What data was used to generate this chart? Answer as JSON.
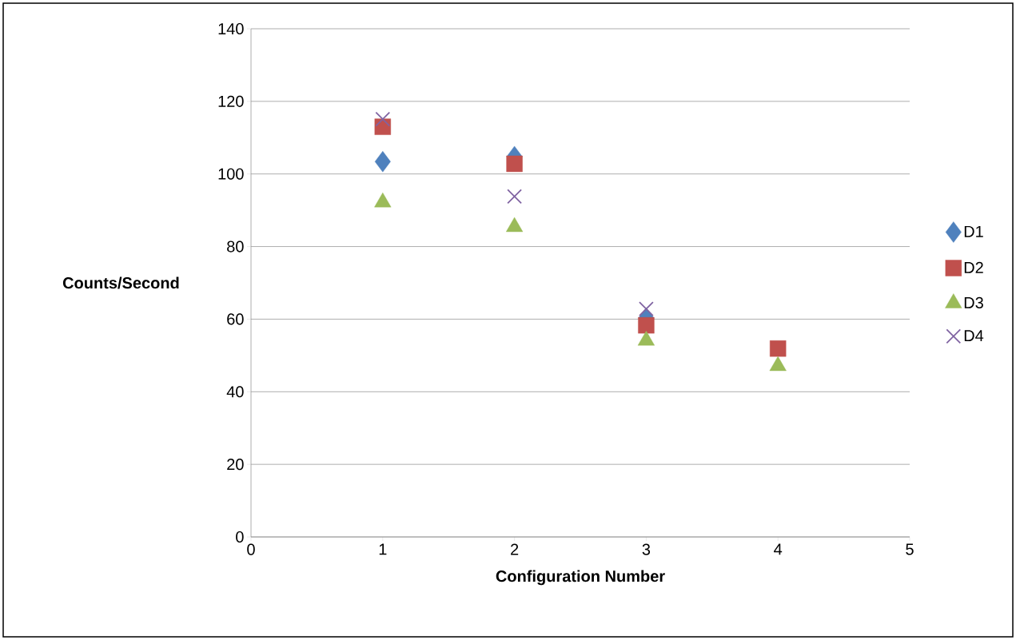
{
  "chart_data": {
    "type": "scatter",
    "xlabel": "Configuration Number",
    "ylabel": "Counts/Second",
    "x": [
      1,
      2,
      3,
      4
    ],
    "series": [
      {
        "name": "D1",
        "color": "#4f81bd",
        "marker": "diamond",
        "values": [
          103.4,
          104.8,
          60.3,
          null
        ]
      },
      {
        "name": "D2",
        "color": "#c0504d",
        "marker": "square",
        "values": [
          113,
          102.8,
          58.3,
          51.9
        ]
      },
      {
        "name": "D3",
        "color": "#9bbb59",
        "marker": "triangle",
        "values": [
          92.2,
          85.4,
          54.1,
          47.1
        ]
      },
      {
        "name": "D4",
        "color": "#8064a2",
        "marker": "cross",
        "values": [
          115.1,
          93.8,
          62.8,
          null
        ]
      }
    ],
    "xlim": [
      0,
      5
    ],
    "xticks": [
      0,
      1,
      2,
      3,
      4,
      5
    ],
    "ylim": [
      0,
      140
    ],
    "yticks": [
      0,
      20,
      40,
      60,
      80,
      100,
      120,
      140
    ],
    "grid": "y",
    "legend": "right"
  }
}
